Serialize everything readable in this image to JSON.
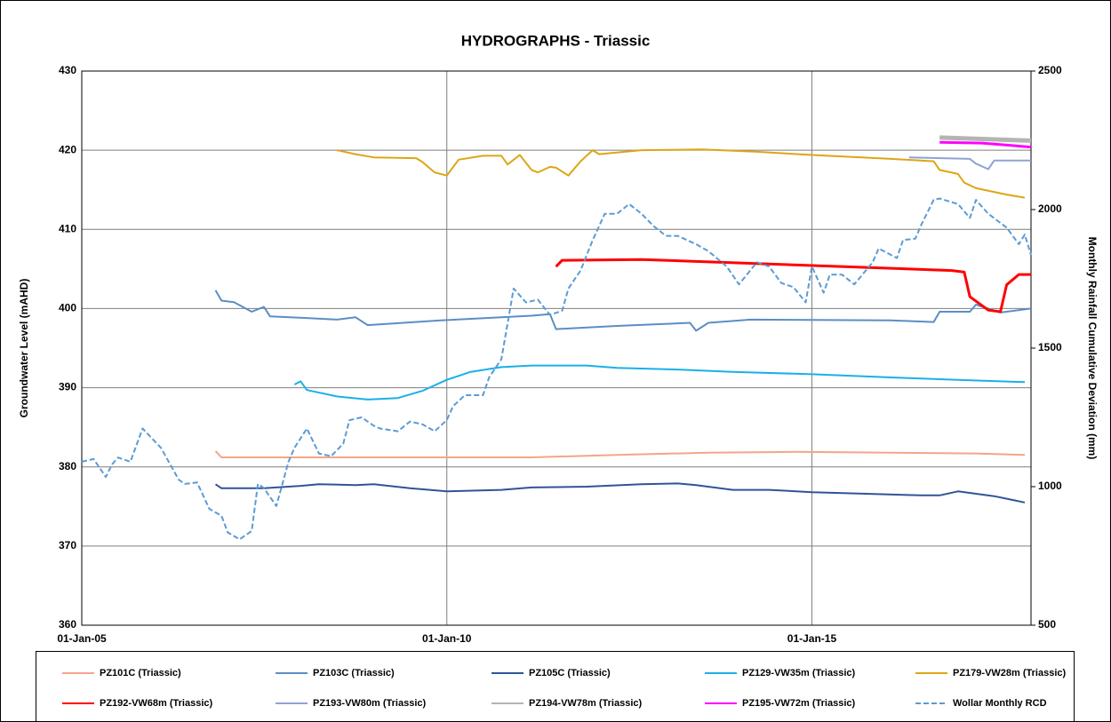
{
  "chart_data": {
    "type": "line",
    "title": "HYDROGRAPHS - Triassic",
    "y_label": "Groundwater Level (mAHD)",
    "y2_label": "Monthly Rainfall Cumulative Deviation (mm)",
    "xlim": [
      "2005-01-01",
      "2018-01-01"
    ],
    "xticks": [
      {
        "value": "2005-01-01",
        "label": "01-Jan-05"
      },
      {
        "value": "2010-01-01",
        "label": "01-Jan-10"
      },
      {
        "value": "2015-01-01",
        "label": "01-Jan-15"
      }
    ],
    "ylim": [
      360,
      430
    ],
    "yticks": [
      360,
      370,
      380,
      390,
      400,
      410,
      420,
      430
    ],
    "y2lim": [
      500,
      2500
    ],
    "y2ticks": [
      500,
      1000,
      1500,
      2000,
      2500
    ],
    "grid": true,
    "legend": "bottom",
    "series": [
      {
        "name": "PZ101C (Triassic)",
        "color": "#f4a58a",
        "x": [
          "2006-11",
          "2006-12",
          "2008-10",
          "2011-03",
          "2012-05",
          "2013-08",
          "2014-10",
          "2016-02",
          "2017-04",
          "2017-12"
        ],
        "values": [
          382,
          381.2,
          381.2,
          381.2,
          381.5,
          381.8,
          381.9,
          381.8,
          381.7,
          381.5
        ]
      },
      {
        "name": "PZ103C (Triassic)",
        "color": "#5b8ec4",
        "x": [
          "2006-11",
          "2006-12",
          "2007-02",
          "2007-05",
          "2007-07",
          "2007-08",
          "2008-02",
          "2008-07",
          "2008-10",
          "2008-12",
          "2009-12",
          "2011-03",
          "2011-06",
          "2011-07",
          "2012-05",
          "2013-05",
          "2013-06",
          "2013-08",
          "2014-03",
          "2016-02",
          "2016-09",
          "2016-10",
          "2017-03",
          "2017-04",
          "2017-08",
          "2018-01"
        ],
        "values": [
          402.3,
          401,
          400.8,
          399.6,
          400.2,
          399,
          398.8,
          398.6,
          398.9,
          397.9,
          398.5,
          399.1,
          399.3,
          397.4,
          397.8,
          398.2,
          397.2,
          398.2,
          398.6,
          398.5,
          398.3,
          399.6,
          399.6,
          400.5,
          399.5,
          400
        ]
      },
      {
        "name": "PZ105C (Triassic)",
        "color": "#2f5597",
        "x": [
          "2006-11",
          "2006-12",
          "2007-07",
          "2008-01",
          "2008-04",
          "2008-10",
          "2009-01",
          "2009-07",
          "2010-01",
          "2010-10",
          "2011-03",
          "2011-12",
          "2012-09",
          "2013-03",
          "2013-06",
          "2013-12",
          "2014-06",
          "2015-01",
          "2015-10",
          "2016-07",
          "2016-10",
          "2017-01",
          "2017-07",
          "2017-12"
        ],
        "values": [
          377.8,
          377.3,
          377.3,
          377.6,
          377.8,
          377.7,
          377.8,
          377.3,
          376.9,
          377.1,
          377.4,
          377.5,
          377.8,
          377.9,
          377.7,
          377.1,
          377.1,
          376.8,
          376.6,
          376.4,
          376.4,
          376.9,
          376.3,
          375.5
        ]
      },
      {
        "name": "PZ129-VW35m (Triassic)",
        "color": "#1ab0e8",
        "x": [
          "2007-12",
          "2008-01",
          "2008-02",
          "2008-07",
          "2008-12",
          "2009-05",
          "2009-09",
          "2010-01",
          "2010-05",
          "2010-10",
          "2011-03",
          "2011-12",
          "2012-05",
          "2013-03",
          "2013-12",
          "2015-01",
          "2016-02",
          "2017-01",
          "2017-12"
        ],
        "values": [
          390.4,
          390.8,
          389.7,
          388.9,
          388.5,
          388.7,
          389.6,
          391,
          392,
          392.6,
          392.8,
          392.8,
          392.5,
          392.3,
          392,
          391.7,
          391.3,
          391,
          390.7
        ]
      },
      {
        "name": "PZ179-VW28m (Triassic)",
        "color": "#dca614",
        "x": [
          "2008-07",
          "2008-10",
          "2009-01",
          "2009-08",
          "2009-09",
          "2009-11",
          "2010-01",
          "2010-03",
          "2010-07",
          "2010-10",
          "2010-11",
          "2011-01",
          "2011-03",
          "2011-04",
          "2011-06",
          "2011-07",
          "2011-09",
          "2011-11",
          "2012-01",
          "2012-02",
          "2012-09",
          "2013-07",
          "2014-04",
          "2015-01",
          "2016-02",
          "2016-09",
          "2016-10",
          "2017-01",
          "2017-02",
          "2017-04",
          "2017-09",
          "2017-12"
        ],
        "values": [
          420,
          419.5,
          419.1,
          419,
          418.5,
          417.2,
          416.8,
          418.8,
          419.3,
          419.3,
          418.2,
          419.4,
          417.5,
          417.2,
          417.9,
          417.8,
          416.8,
          418.6,
          420,
          419.5,
          420,
          420.1,
          419.8,
          419.4,
          418.9,
          418.6,
          417.5,
          417,
          415.9,
          415.2,
          414.4,
          414
        ]
      },
      {
        "name": "PZ192-VW68m (Triassic)",
        "color": "#ff0000",
        "x": [
          "2011-07",
          "2011-08",
          "2012-09",
          "2016-12",
          "2017-02",
          "2017-03",
          "2017-06",
          "2017-08",
          "2017-09",
          "2017-11",
          "2018-01"
        ],
        "values": [
          405.3,
          406.1,
          406.2,
          404.8,
          404.6,
          401.5,
          399.8,
          399.6,
          403,
          404.3,
          404.3
        ]
      },
      {
        "name": "PZ193-VW80m (Triassic)",
        "color": "#8fa2d4",
        "x": [
          "2016-05",
          "2017-03",
          "2017-04",
          "2017-06",
          "2017-07",
          "2018-01"
        ],
        "values": [
          419.1,
          418.9,
          418.3,
          417.6,
          418.7,
          418.7
        ]
      },
      {
        "name": "PZ194-VW78m (Triassic)",
        "color": "#b4b4b4",
        "x": [
          "2016-10",
          "2018-01"
        ],
        "values": [
          421.6,
          421.2
        ]
      },
      {
        "name": "PZ195-VW72m (Triassic)",
        "color": "#ff00ff",
        "x": [
          "2016-10",
          "2017-05",
          "2018-01"
        ],
        "values": [
          421,
          420.9,
          420.4
        ]
      },
      {
        "name": "Wollar Monthly RCD",
        "color": "#5b9bd5",
        "axis": "y2",
        "dash": "dashed",
        "x": [
          "2005-01",
          "2005-03",
          "2005-05",
          "2005-06",
          "2005-07",
          "2005-09",
          "2005-11",
          "2006-02",
          "2006-05",
          "2006-06",
          "2006-08",
          "2006-10",
          "2006-12",
          "2007-01",
          "2007-03",
          "2007-05",
          "2007-06",
          "2007-07",
          "2007-09",
          "2007-11",
          "2007-12",
          "2008-02",
          "2008-04",
          "2008-06",
          "2008-08",
          "2008-09",
          "2008-11",
          "2009-01",
          "2009-02",
          "2009-05",
          "2009-07",
          "2009-09",
          "2009-11",
          "2010-01",
          "2010-02",
          "2010-04",
          "2010-07",
          "2010-08",
          "2010-10",
          "2010-12",
          "2011-02",
          "2011-04",
          "2011-06",
          "2011-08",
          "2011-09",
          "2011-11",
          "2012-01",
          "2012-03",
          "2012-05",
          "2012-07",
          "2012-09",
          "2012-11",
          "2013-01",
          "2013-03",
          "2013-06",
          "2013-08",
          "2013-11",
          "2014-01",
          "2014-04",
          "2014-06",
          "2014-08",
          "2014-10",
          "2014-12",
          "2015-01",
          "2015-03",
          "2015-04",
          "2015-06",
          "2015-08",
          "2015-11",
          "2015-12",
          "2016-03",
          "2016-04",
          "2016-06",
          "2016-07",
          "2016-09",
          "2016-10",
          "2017-01",
          "2017-03",
          "2017-04",
          "2017-06",
          "2017-09",
          "2017-11",
          "2017-12",
          "2018-01"
        ],
        "values": [
          1090,
          1100,
          1035,
          1080,
          1105,
          1090,
          1210,
          1140,
          1025,
          1010,
          1015,
          920,
          895,
          835,
          810,
          840,
          1010,
          995,
          930,
          1090,
          1140,
          1210,
          1120,
          1110,
          1155,
          1240,
          1250,
          1220,
          1210,
          1200,
          1235,
          1225,
          1200,
          1240,
          1290,
          1330,
          1330,
          1395,
          1460,
          1715,
          1665,
          1675,
          1620,
          1635,
          1715,
          1780,
          1890,
          1985,
          1985,
          2020,
          1985,
          1940,
          1905,
          1905,
          1875,
          1850,
          1795,
          1730,
          1810,
          1795,
          1735,
          1720,
          1665,
          1795,
          1700,
          1765,
          1765,
          1730,
          1810,
          1860,
          1825,
          1890,
          1895,
          1945,
          2035,
          2040,
          2020,
          1970,
          2035,
          1985,
          1935,
          1875,
          1910,
          1835
        ]
      }
    ]
  }
}
